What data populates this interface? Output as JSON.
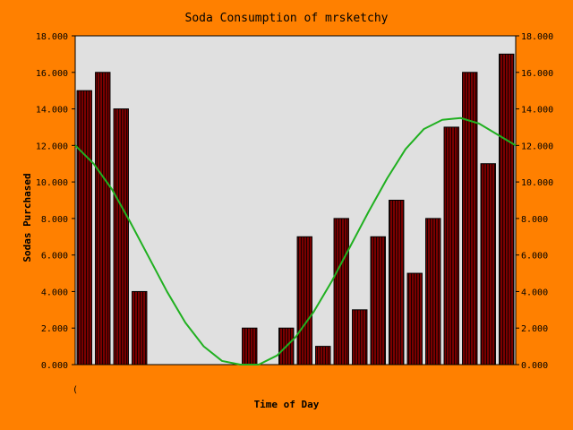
{
  "chart_data": {
    "type": "bar",
    "title": "Soda Consumption of mrsketchy",
    "xlabel": "Time of Day",
    "ylabel": "Sodas Purchased",
    "x_tick_label": "(",
    "ylim": [
      0,
      18
    ],
    "y_ticks": [
      "0.000",
      "2.000",
      "4.000",
      "6.000",
      "8.000",
      "10.000",
      "12.000",
      "14.000",
      "16.000",
      "18.000"
    ],
    "grid": false,
    "bar_values": [
      15,
      16,
      14,
      4,
      0,
      0,
      0,
      0,
      0,
      2,
      0,
      2,
      7,
      1,
      8,
      3,
      7,
      9,
      5,
      8,
      13,
      16,
      11,
      17
    ],
    "trend_line": {
      "x": [
        0,
        1,
        2,
        3,
        4,
        5,
        6,
        7,
        8,
        9,
        10,
        11,
        12,
        13,
        14,
        15,
        16,
        17,
        18,
        19,
        20,
        21,
        22,
        23,
        24
      ],
      "y": [
        12.0,
        11.0,
        9.6,
        7.8,
        5.9,
        4.0,
        2.3,
        1.0,
        0.2,
        0.0,
        0.0,
        0.5,
        1.5,
        2.9,
        4.6,
        6.5,
        8.4,
        10.2,
        11.8,
        12.9,
        13.4,
        13.5,
        13.2,
        12.6,
        12.0
      ]
    },
    "colors": {
      "background": "#ff8000",
      "plot_area": "#e0e0e0",
      "bar_fill": "#7a0000",
      "bar_stripe": "#1a0000",
      "trend_line": "#20b020"
    }
  }
}
